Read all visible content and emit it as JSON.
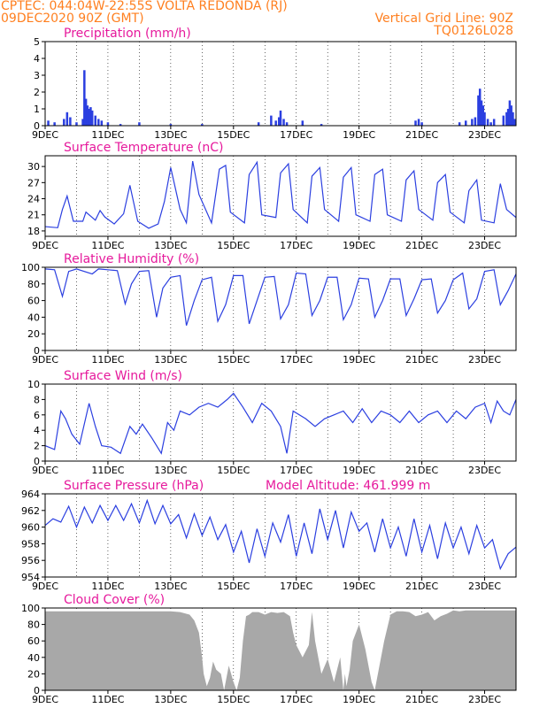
{
  "header": {
    "line1": "CPTEC:   044:04W-22:55S   VOLTA REDONDA (RJ)",
    "line2": "09DEC2020 90Z (GMT)",
    "grid_note": "Vertical Grid Line: 90Z",
    "code": "TQ0126L028"
  },
  "colors": {
    "line": "#2b3fe0",
    "header": "#ff7f1f",
    "title": "#e6199c",
    "cloud": "#a8a8a8"
  },
  "chart_data": [
    {
      "type": "bar",
      "title": "Precipitation (mm/h)",
      "x_labels": [
        "9DEC",
        "11DEC",
        "13DEC",
        "15DEC",
        "17DEC",
        "19DEC",
        "21DEC",
        "23DEC"
      ],
      "ylim": [
        0,
        5
      ],
      "yticks": [
        0,
        1,
        2,
        3,
        4,
        5
      ],
      "x_range_days": [
        9,
        24
      ],
      "series_x_day": [
        9.1,
        9.3,
        9.6,
        9.7,
        9.8,
        10.0,
        10.2,
        10.25,
        10.3,
        10.35,
        10.4,
        10.45,
        10.5,
        10.6,
        10.7,
        10.8,
        11.0,
        11.4,
        12.0,
        13.0,
        14.0,
        15.8,
        16.2,
        16.35,
        16.45,
        16.5,
        16.6,
        16.7,
        17.2,
        17.8,
        20.8,
        20.9,
        21.0,
        22.2,
        22.4,
        22.6,
        22.7,
        22.8,
        22.85,
        22.9,
        22.95,
        23.0,
        23.1,
        23.2,
        23.3,
        23.6,
        23.7,
        23.75,
        23.8,
        23.85,
        23.9,
        23.95
      ],
      "series_y": [
        0.3,
        0.2,
        0.4,
        0.8,
        0.5,
        0.2,
        0.4,
        3.3,
        1.6,
        1.2,
        1.0,
        1.1,
        0.9,
        0.6,
        0.4,
        0.3,
        0.2,
        0.1,
        0.2,
        0.1,
        0.1,
        0.2,
        0.6,
        0.3,
        0.5,
        0.9,
        0.4,
        0.2,
        0.3,
        0.1,
        0.3,
        0.4,
        0.2,
        0.2,
        0.3,
        0.4,
        0.5,
        1.8,
        2.2,
        1.5,
        1.2,
        0.8,
        0.4,
        0.2,
        0.4,
        0.6,
        0.8,
        1.0,
        1.5,
        1.2,
        0.8,
        0.4
      ]
    },
    {
      "type": "line",
      "title": "Surface Temperature (nC)",
      "x_labels": [
        "9DEC",
        "11DEC",
        "13DEC",
        "15DEC",
        "17DEC",
        "19DEC",
        "21DEC",
        "23DEC"
      ],
      "ylim": [
        17,
        32
      ],
      "yticks": [
        18,
        21,
        24,
        27,
        30
      ],
      "x_range_days": [
        9,
        24
      ],
      "series_x_day": [
        9.0,
        9.4,
        9.55,
        9.7,
        9.9,
        10.2,
        10.3,
        10.6,
        10.75,
        10.9,
        11.2,
        11.5,
        11.7,
        11.95,
        12.3,
        12.6,
        12.8,
        13.0,
        13.3,
        13.5,
        13.7,
        13.9,
        14.3,
        14.55,
        14.75,
        14.9,
        15.35,
        15.5,
        15.75,
        15.9,
        16.35,
        16.5,
        16.75,
        16.9,
        17.35,
        17.5,
        17.75,
        17.9,
        18.35,
        18.5,
        18.75,
        18.9,
        19.35,
        19.5,
        19.75,
        19.9,
        20.35,
        20.5,
        20.75,
        20.9,
        21.35,
        21.5,
        21.75,
        21.9,
        22.35,
        22.5,
        22.75,
        22.9,
        23.3,
        23.5,
        23.7,
        24.0
      ],
      "series_y": [
        18.8,
        18.6,
        22.0,
        24.5,
        19.8,
        19.8,
        21.5,
        20.0,
        21.8,
        20.6,
        19.3,
        21.2,
        26.5,
        19.8,
        18.5,
        19.3,
        23.5,
        29.8,
        22.0,
        19.5,
        31.0,
        24.8,
        19.5,
        29.5,
        30.2,
        21.5,
        19.5,
        28.5,
        30.8,
        21.0,
        20.5,
        28.8,
        30.5,
        22.0,
        19.5,
        28.2,
        29.8,
        22.0,
        19.8,
        28.0,
        29.8,
        21.0,
        19.8,
        28.5,
        29.5,
        21.0,
        19.8,
        27.5,
        29.2,
        22.0,
        20.0,
        27.0,
        28.5,
        21.5,
        19.5,
        25.5,
        27.5,
        20.0,
        19.5,
        26.8,
        22.0,
        20.5
      ]
    },
    {
      "type": "line",
      "title": "Relative Humidity (%)",
      "x_labels": [
        "9DEC",
        "11DEC",
        "13DEC",
        "15DEC",
        "17DEC",
        "19DEC",
        "21DEC",
        "23DEC"
      ],
      "ylim": [
        0,
        100
      ],
      "yticks": [
        0,
        20,
        40,
        60,
        80,
        100
      ],
      "x_range_days": [
        9,
        24
      ],
      "series_x_day": [
        9.0,
        9.3,
        9.55,
        9.75,
        10.0,
        10.5,
        10.7,
        11.0,
        11.3,
        11.55,
        11.75,
        12.0,
        12.3,
        12.55,
        12.75,
        13.0,
        13.3,
        13.5,
        13.75,
        14.0,
        14.3,
        14.5,
        14.75,
        15.0,
        15.3,
        15.5,
        15.75,
        16.0,
        16.3,
        16.5,
        16.75,
        17.0,
        17.3,
        17.5,
        17.75,
        18.0,
        18.3,
        18.5,
        18.75,
        19.0,
        19.3,
        19.5,
        19.75,
        20.0,
        20.3,
        20.5,
        20.75,
        21.0,
        21.3,
        21.5,
        21.75,
        22.0,
        22.3,
        22.5,
        22.75,
        23.0,
        23.3,
        23.5,
        23.75,
        24.0
      ],
      "series_y": [
        98,
        97,
        65,
        95,
        98,
        92,
        98,
        97,
        96,
        56,
        80,
        95,
        96,
        40,
        75,
        88,
        90,
        30,
        60,
        85,
        88,
        35,
        55,
        90,
        90,
        32,
        60,
        88,
        89,
        38,
        55,
        93,
        92,
        42,
        60,
        88,
        88,
        37,
        55,
        87,
        86,
        40,
        60,
        86,
        86,
        42,
        62,
        85,
        86,
        45,
        60,
        85,
        93,
        50,
        62,
        95,
        97,
        55,
        72,
        92
      ]
    },
    {
      "type": "line",
      "title": "Surface Wind (m/s)",
      "x_labels": [
        "9DEC",
        "11DEC",
        "13DEC",
        "15DEC",
        "17DEC",
        "19DEC",
        "21DEC",
        "23DEC"
      ],
      "ylim": [
        0,
        10
      ],
      "yticks": [
        0,
        2,
        4,
        6,
        8,
        10
      ],
      "x_range_days": [
        9,
        24
      ],
      "series_x_day": [
        9.0,
        9.3,
        9.5,
        9.65,
        9.85,
        10.1,
        10.4,
        10.6,
        10.8,
        11.1,
        11.4,
        11.7,
        11.9,
        12.1,
        12.4,
        12.7,
        12.9,
        13.1,
        13.3,
        13.6,
        13.9,
        14.2,
        14.5,
        14.8,
        15.0,
        15.3,
        15.6,
        15.9,
        16.2,
        16.5,
        16.7,
        16.9,
        17.3,
        17.6,
        17.9,
        18.2,
        18.5,
        18.8,
        19.1,
        19.4,
        19.7,
        20.0,
        20.3,
        20.6,
        20.9,
        21.2,
        21.5,
        21.8,
        22.1,
        22.4,
        22.7,
        23.0,
        23.2,
        23.4,
        23.6,
        23.8,
        24.0
      ],
      "series_y": [
        2.0,
        1.5,
        6.5,
        5.5,
        3.5,
        2.2,
        7.5,
        4.5,
        2.0,
        1.8,
        1.0,
        4.5,
        3.5,
        4.8,
        3.0,
        1.0,
        5.0,
        4.0,
        6.5,
        6.0,
        7.0,
        7.5,
        7.0,
        8.0,
        8.8,
        7.0,
        5.0,
        7.5,
        6.5,
        4.5,
        1.0,
        6.5,
        5.5,
        4.5,
        5.5,
        6.0,
        6.5,
        5.0,
        6.8,
        5.0,
        6.5,
        6.0,
        5.0,
        6.5,
        5.0,
        6.0,
        6.5,
        5.0,
        6.5,
        5.5,
        7.0,
        7.5,
        5.0,
        7.8,
        6.5,
        6.0,
        8.0
      ]
    },
    {
      "type": "line",
      "title": "Surface Pressure (hPa)",
      "annotation": "Model Altitude: 461.999 m",
      "x_labels": [
        "9DEC",
        "11DEC",
        "13DEC",
        "15DEC",
        "17DEC",
        "19DEC",
        "21DEC",
        "23DEC"
      ],
      "ylim": [
        954,
        964
      ],
      "yticks": [
        954,
        956,
        958,
        960,
        962,
        964
      ],
      "x_range_days": [
        9,
        24
      ],
      "series_x_day": [
        9.0,
        9.25,
        9.5,
        9.75,
        10.0,
        10.25,
        10.5,
        10.75,
        11.0,
        11.25,
        11.5,
        11.75,
        12.0,
        12.25,
        12.5,
        12.75,
        13.0,
        13.25,
        13.5,
        13.75,
        14.0,
        14.25,
        14.5,
        14.75,
        15.0,
        15.25,
        15.5,
        15.75,
        16.0,
        16.25,
        16.5,
        16.75,
        17.0,
        17.25,
        17.5,
        17.75,
        18.0,
        18.25,
        18.5,
        18.75,
        19.0,
        19.25,
        19.5,
        19.75,
        20.0,
        20.25,
        20.5,
        20.75,
        21.0,
        21.25,
        21.5,
        21.75,
        22.0,
        22.25,
        22.5,
        22.75,
        23.0,
        23.25,
        23.5,
        23.75,
        24.0
      ],
      "series_y": [
        960.2,
        961.0,
        960.6,
        962.5,
        960.0,
        962.4,
        960.5,
        962.6,
        960.8,
        962.6,
        960.8,
        962.8,
        960.5,
        963.2,
        960.4,
        962.6,
        960.4,
        961.5,
        958.7,
        961.6,
        959.0,
        961.2,
        958.5,
        960.3,
        957.0,
        959.5,
        955.7,
        959.8,
        956.5,
        960.5,
        958.2,
        961.5,
        956.5,
        960.5,
        956.8,
        962.2,
        958.5,
        962.0,
        957.5,
        961.8,
        959.5,
        960.5,
        957.0,
        961.0,
        957.5,
        960.0,
        956.5,
        961.0,
        957.0,
        960.2,
        956.2,
        960.5,
        957.5,
        960.0,
        956.8,
        960.2,
        957.5,
        958.5,
        955.0,
        956.8,
        957.6
      ]
    },
    {
      "type": "area",
      "title": "Cloud Cover (%)",
      "x_labels": [
        "9DEC",
        "11DEC",
        "13DEC",
        "15DEC",
        "17DEC",
        "19DEC",
        "21DEC",
        "23DEC"
      ],
      "ylim": [
        0,
        100
      ],
      "yticks": [
        0,
        20,
        40,
        60,
        80,
        100
      ],
      "x_range_days": [
        9,
        24
      ],
      "series_x_day": [
        9.0,
        12.0,
        12.5,
        13.0,
        13.3,
        13.6,
        13.75,
        13.9,
        14.0,
        14.05,
        14.15,
        14.25,
        14.35,
        14.45,
        14.6,
        14.7,
        14.85,
        15.0,
        15.1,
        15.2,
        15.3,
        15.4,
        15.5,
        15.6,
        15.8,
        16.0,
        16.2,
        16.4,
        16.6,
        16.8,
        16.9,
        17.0,
        17.2,
        17.4,
        17.5,
        17.6,
        17.8,
        18.0,
        18.2,
        18.4,
        18.5,
        18.55,
        18.6,
        18.7,
        18.8,
        19.0,
        19.2,
        19.4,
        19.5,
        19.8,
        20.0,
        20.2,
        20.4,
        20.6,
        20.8,
        21.0,
        21.2,
        21.4,
        21.6,
        21.8,
        22.0,
        22.2,
        22.4,
        22.6,
        22.8,
        23.0,
        23.2,
        23.4,
        23.6,
        23.8,
        24.0
      ],
      "series_y": [
        96,
        96,
        96,
        96,
        95,
        92,
        85,
        70,
        40,
        20,
        5,
        15,
        35,
        25,
        20,
        0,
        30,
        10,
        0,
        15,
        60,
        90,
        92,
        95,
        95,
        92,
        95,
        94,
        95,
        90,
        70,
        55,
        40,
        55,
        95,
        60,
        20,
        38,
        10,
        40,
        0,
        20,
        5,
        25,
        60,
        80,
        50,
        10,
        0,
        60,
        92,
        96,
        96,
        95,
        90,
        92,
        95,
        85,
        90,
        93,
        97,
        96,
        97,
        97,
        97,
        97,
        97,
        97,
        97,
        97,
        97
      ]
    }
  ]
}
